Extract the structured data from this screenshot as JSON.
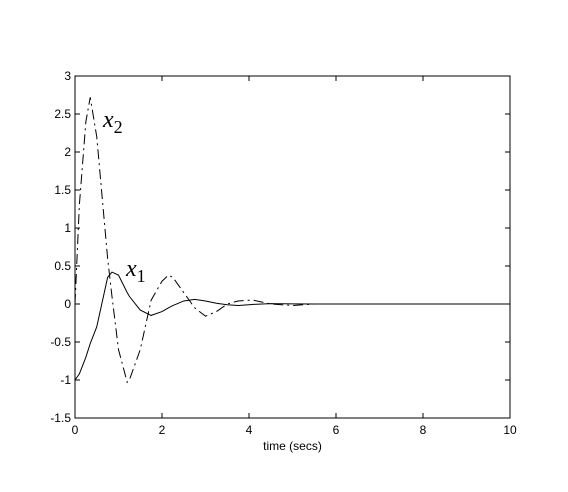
{
  "chart_data": {
    "type": "line",
    "xlabel": "time (secs)",
    "x": [
      0,
      0.1,
      0.25,
      0.35,
      0.5,
      0.75,
      0.85,
      1.0,
      1.2,
      1.25,
      1.5,
      1.75,
      2.0,
      2.15,
      2.25,
      2.5,
      2.75,
      3.0,
      3.25,
      3.5,
      3.75,
      4.0,
      4.1,
      4.5,
      5,
      5.5,
      6,
      7,
      8,
      9,
      10
    ],
    "series": [
      {
        "color": "#000000",
        "dash": "solid",
        "values": [
          -1,
          -0.92,
          -0.7,
          -0.52,
          -0.3,
          0.35,
          0.42,
          0.38,
          0.15,
          0.1,
          -0.08,
          -0.15,
          -0.1,
          -0.05,
          -0.02,
          0.04,
          0.06,
          0.04,
          0.01,
          -0.01,
          -0.02,
          -0.01,
          -0.005,
          0.005,
          0.002,
          0,
          0,
          0,
          0,
          0,
          0
        ]
      },
      {
        "color": "#000000",
        "dash": "dashdot",
        "values": [
          0,
          1.3,
          2.4,
          2.72,
          2.2,
          0.6,
          0.1,
          -0.6,
          -1.03,
          -1.0,
          -0.6,
          0.05,
          0.3,
          0.38,
          0.35,
          0.15,
          -0.05,
          -0.16,
          -0.1,
          0,
          0.04,
          0.05,
          0.05,
          0,
          -0.02,
          0,
          0,
          0,
          0,
          0,
          0
        ]
      }
    ],
    "annotations": [
      {
        "text": "x",
        "subscript": "2"
      },
      {
        "text": "x",
        "subscript": "1"
      }
    ],
    "xlim": [
      0,
      10
    ],
    "xticks": [
      0,
      2,
      4,
      6,
      8,
      10
    ],
    "ylim": [
      -1.5,
      3
    ],
    "yticks": [
      -1.5,
      -1,
      -0.5,
      0,
      0.5,
      1,
      1.5,
      2,
      2.5,
      3
    ],
    "grid": false
  }
}
